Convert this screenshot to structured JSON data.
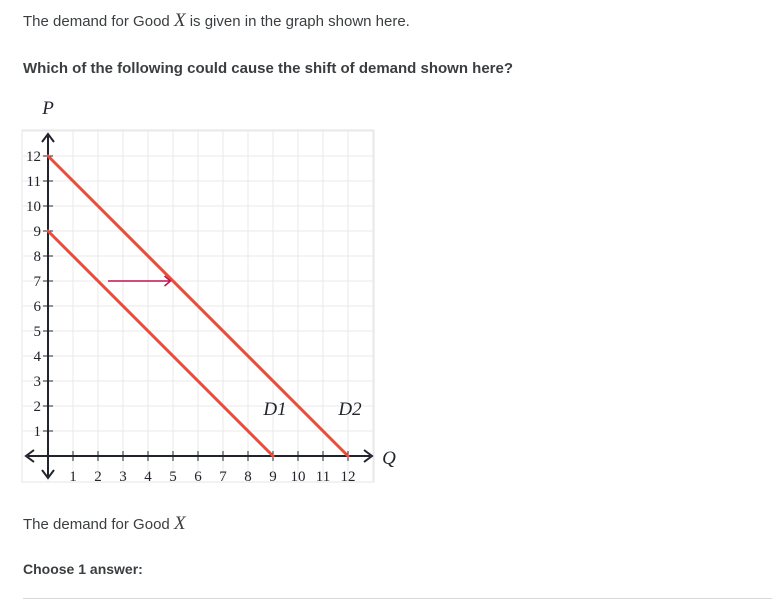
{
  "intro": {
    "before": "The demand for Good ",
    "var": "X",
    "after": " is given in the graph shown here."
  },
  "question": "Which of the following could cause the shift of demand shown here?",
  "caption": {
    "text": "The demand for Good ",
    "var": "X"
  },
  "choose_label": "Choose 1 answer:",
  "chart_data": {
    "type": "line",
    "xlabel": "Q",
    "ylabel": "P",
    "xlim": [
      0,
      13
    ],
    "ylim": [
      0,
      13
    ],
    "x_ticks": [
      1,
      2,
      3,
      4,
      5,
      6,
      7,
      8,
      9,
      10,
      11,
      12
    ],
    "y_ticks": [
      1,
      2,
      3,
      4,
      5,
      6,
      7,
      8,
      9,
      10,
      11,
      12
    ],
    "grid": true,
    "series": [
      {
        "name": "D1",
        "x": [
          0,
          9
        ],
        "y": [
          9,
          0
        ],
        "color": "#e84d39"
      },
      {
        "name": "D2",
        "x": [
          0,
          12
        ],
        "y": [
          12,
          0
        ],
        "color": "#e84d39"
      }
    ],
    "annotations": [
      {
        "type": "arrow",
        "from": [
          2.4,
          7
        ],
        "to": [
          4.9,
          7
        ],
        "color": "#c4114e"
      }
    ]
  }
}
